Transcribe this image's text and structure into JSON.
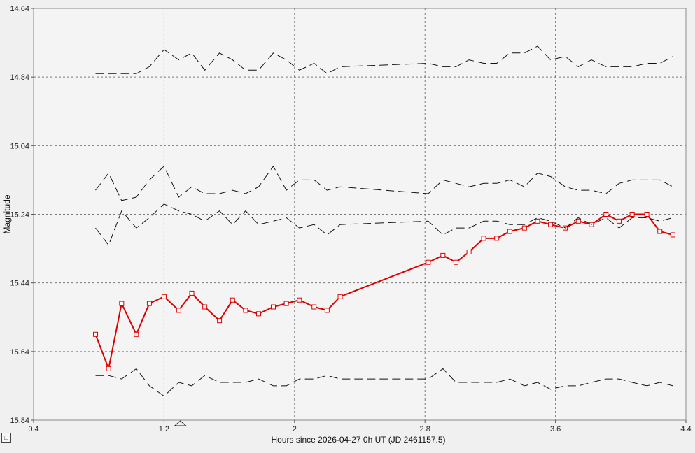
{
  "chart_data": {
    "type": "line",
    "title": "",
    "xlabel": "Hours since 2026-04-27 0h UT (JD 2461157.5)",
    "ylabel": "Magnitude",
    "xlim": [
      0.4,
      4.4
    ],
    "ylim": [
      14.64,
      15.84
    ],
    "y_inverted": true,
    "grid": true,
    "x_ticks": [
      "0.4",
      "1.2",
      "2",
      "2.8",
      "3.6",
      "4.4"
    ],
    "y_ticks": [
      "14.64",
      "14.84",
      "15.04",
      "15.24",
      "15.44",
      "15.64",
      "15.84"
    ],
    "marker_x": 1.3,
    "series": [
      {
        "color": "#dd0000",
        "style": "solid-markers",
        "x": [
          0.78,
          0.86,
          0.94,
          1.03,
          1.11,
          1.2,
          1.29,
          1.37,
          1.45,
          1.54,
          1.62,
          1.7,
          1.78,
          1.87,
          1.95,
          2.03,
          2.12,
          2.2,
          2.28,
          2.82,
          2.91,
          2.99,
          3.07,
          3.16,
          3.24,
          3.32,
          3.41,
          3.49,
          3.57,
          3.66,
          3.74,
          3.82,
          3.91,
          3.99,
          4.07,
          4.16,
          4.24,
          4.32
        ],
        "y": [
          15.59,
          15.69,
          15.5,
          15.59,
          15.5,
          15.48,
          15.52,
          15.47,
          15.51,
          15.55,
          15.49,
          15.52,
          15.53,
          15.51,
          15.5,
          15.49,
          15.51,
          15.52,
          15.48,
          15.38,
          15.36,
          15.38,
          15.35,
          15.31,
          15.31,
          15.29,
          15.28,
          15.26,
          15.27,
          15.28,
          15.26,
          15.27,
          15.24,
          15.26,
          15.24,
          15.24,
          15.29,
          15.3
        ]
      },
      {
        "color": "#111111",
        "style": "dashed",
        "x": [
          0.78,
          0.86,
          0.94,
          1.03,
          1.11,
          1.2,
          1.29,
          1.37,
          1.45,
          1.54,
          1.62,
          1.7,
          1.78,
          1.87,
          1.95,
          2.03,
          2.12,
          2.2,
          2.28,
          2.82,
          2.91,
          2.99,
          3.07,
          3.16,
          3.24,
          3.32,
          3.41,
          3.49,
          3.57,
          3.66,
          3.74,
          3.82,
          3.91,
          3.99,
          4.07,
          4.16,
          4.24,
          4.32
        ],
        "y": [
          14.83,
          14.83,
          14.83,
          14.83,
          14.81,
          14.76,
          14.79,
          14.77,
          14.82,
          14.77,
          14.79,
          14.82,
          14.82,
          14.77,
          14.79,
          14.82,
          14.8,
          14.83,
          14.81,
          14.8,
          14.81,
          14.81,
          14.79,
          14.8,
          14.8,
          14.77,
          14.77,
          14.75,
          14.79,
          14.78,
          14.81,
          14.79,
          14.81,
          14.81,
          14.81,
          14.8,
          14.8,
          14.78
        ]
      },
      {
        "color": "#111111",
        "style": "dashed",
        "x": [
          0.78,
          0.86,
          0.94,
          1.03,
          1.11,
          1.2,
          1.29,
          1.37,
          1.45,
          1.54,
          1.62,
          1.7,
          1.78,
          1.87,
          1.95,
          2.03,
          2.12,
          2.2,
          2.28,
          2.82,
          2.91,
          2.99,
          3.07,
          3.16,
          3.24,
          3.32,
          3.41,
          3.49,
          3.57,
          3.66,
          3.74,
          3.82,
          3.91,
          3.99,
          4.07,
          4.16,
          4.24,
          4.32
        ],
        "y": [
          15.17,
          15.12,
          15.2,
          15.19,
          15.14,
          15.1,
          15.19,
          15.16,
          15.18,
          15.18,
          15.17,
          15.18,
          15.16,
          15.1,
          15.17,
          15.14,
          15.14,
          15.17,
          15.16,
          15.18,
          15.14,
          15.15,
          15.16,
          15.15,
          15.15,
          15.14,
          15.16,
          15.12,
          15.13,
          15.16,
          15.17,
          15.17,
          15.18,
          15.15,
          15.14,
          15.14,
          15.14,
          15.16
        ]
      },
      {
        "color": "#111111",
        "style": "dashed",
        "x": [
          0.78,
          0.86,
          0.94,
          1.03,
          1.11,
          1.2,
          1.29,
          1.37,
          1.45,
          1.54,
          1.62,
          1.7,
          1.78,
          1.87,
          1.95,
          2.03,
          2.12,
          2.2,
          2.28,
          2.82,
          2.91,
          2.99,
          3.07,
          3.16,
          3.24,
          3.32,
          3.41,
          3.49,
          3.57,
          3.66,
          3.74,
          3.82,
          3.91,
          3.99,
          4.07,
          4.16,
          4.24,
          4.32
        ],
        "y": [
          15.28,
          15.33,
          15.23,
          15.28,
          15.25,
          15.21,
          15.23,
          15.24,
          15.26,
          15.23,
          15.27,
          15.23,
          15.27,
          15.26,
          15.25,
          15.28,
          15.27,
          15.3,
          15.27,
          15.26,
          15.3,
          15.28,
          15.28,
          15.26,
          15.26,
          15.27,
          15.27,
          15.25,
          15.26,
          15.28,
          15.25,
          15.27,
          15.25,
          15.28,
          15.25,
          15.25,
          15.26,
          15.25
        ]
      },
      {
        "color": "#111111",
        "style": "dashed",
        "x": [
          0.78,
          0.86,
          0.94,
          1.03,
          1.11,
          1.2,
          1.29,
          1.37,
          1.45,
          1.54,
          1.62,
          1.7,
          1.78,
          1.87,
          1.95,
          2.03,
          2.12,
          2.2,
          2.28,
          2.82,
          2.91,
          2.99,
          3.07,
          3.16,
          3.24,
          3.32,
          3.41,
          3.49,
          3.57,
          3.66,
          3.74,
          3.82,
          3.91,
          3.99,
          4.07,
          4.16,
          4.24,
          4.32
        ],
        "y": [
          15.71,
          15.71,
          15.72,
          15.69,
          15.74,
          15.77,
          15.73,
          15.74,
          15.71,
          15.73,
          15.73,
          15.73,
          15.72,
          15.74,
          15.74,
          15.72,
          15.72,
          15.71,
          15.72,
          15.72,
          15.69,
          15.73,
          15.73,
          15.73,
          15.73,
          15.72,
          15.74,
          15.73,
          15.75,
          15.74,
          15.74,
          15.73,
          15.72,
          15.72,
          15.73,
          15.74,
          15.73,
          15.74
        ]
      }
    ]
  }
}
